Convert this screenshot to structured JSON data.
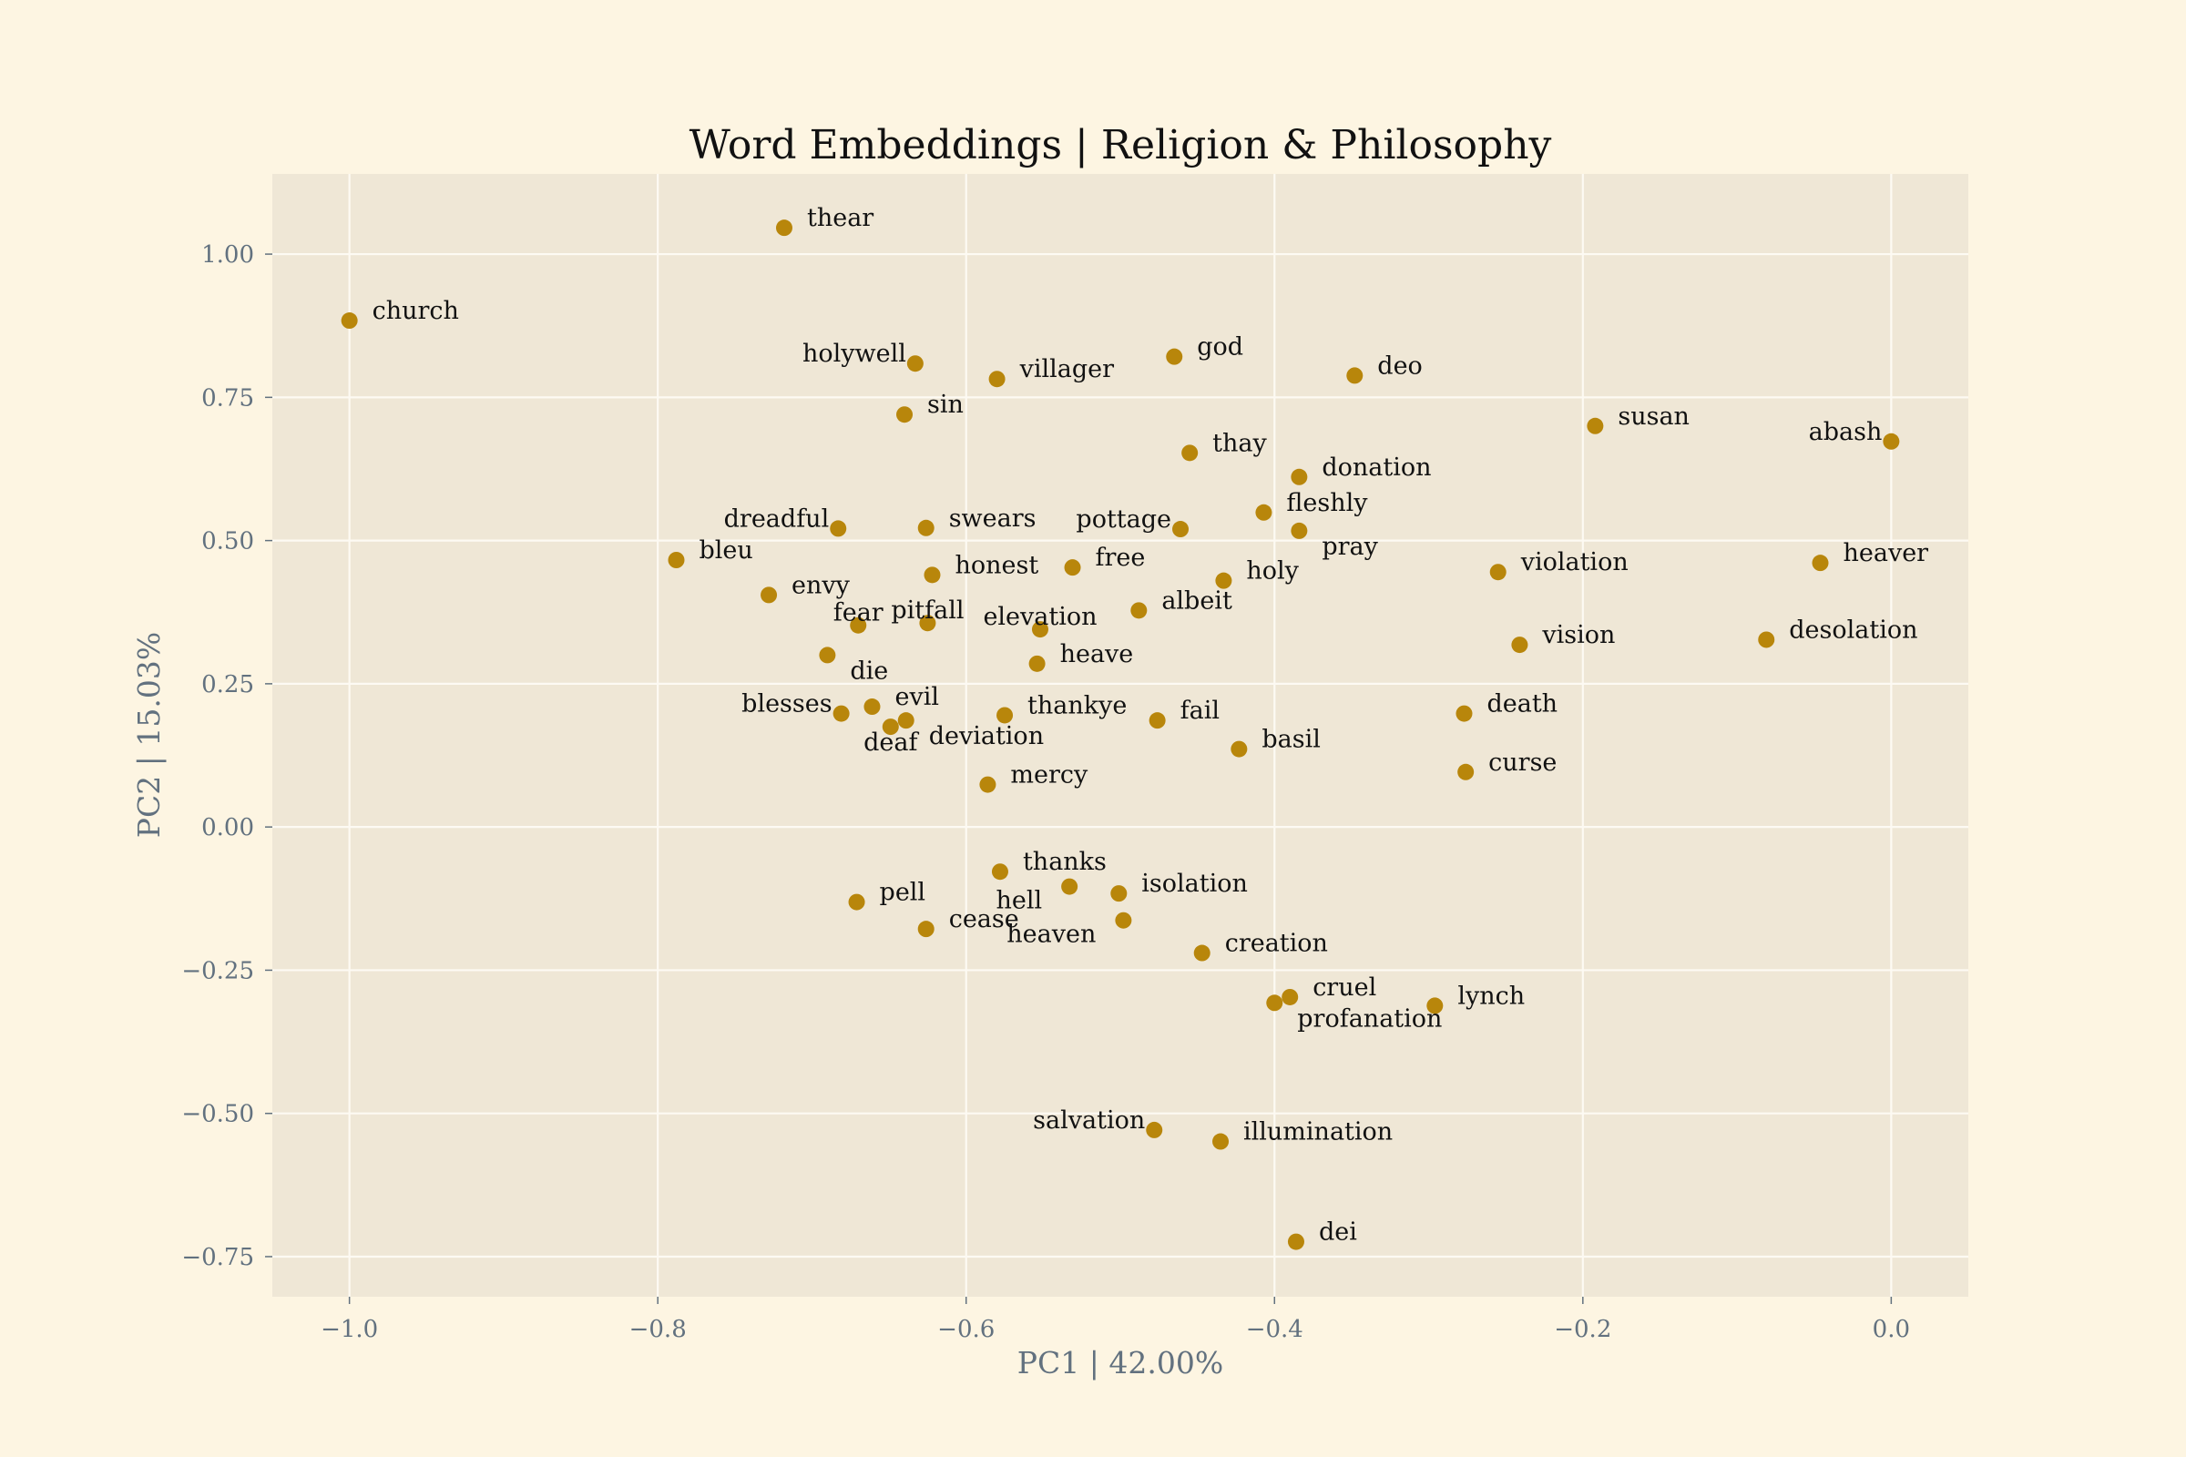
{
  "colors": {
    "figure_background": "#fdf5e2",
    "plot_background": "#efe7d6",
    "grid": "#fdfaf3",
    "point": "#b8860b",
    "tick_text": "#62717f",
    "label_text": "#111111"
  },
  "chart_data": {
    "type": "scatter",
    "title": "Word Embeddings | Religion & Philosophy",
    "xlabel": "PC1 | 42.00%",
    "ylabel": "PC2 | 15.03%",
    "xlim": [
      -1.05,
      0.05
    ],
    "ylim": [
      -0.82,
      1.14
    ],
    "grid": true,
    "legend": "none",
    "x_ticks": [
      -1.0,
      -0.8,
      -0.6,
      -0.4,
      -0.2,
      0.0
    ],
    "x_tick_labels": [
      "−1.0",
      "−0.8",
      "−0.6",
      "−0.4",
      "−0.2",
      "0.0"
    ],
    "y_ticks": [
      1.0,
      0.75,
      0.5,
      0.25,
      0.0,
      -0.25,
      -0.5,
      -0.75
    ],
    "y_tick_labels": [
      "1.00",
      "0.75",
      "0.50",
      "0.25",
      "0.00",
      "−0.25",
      "−0.50",
      "−0.75"
    ],
    "points": [
      {
        "label": "thear",
        "x": -0.718,
        "y": 1.046
      },
      {
        "label": "church",
        "x": -1.0,
        "y": 0.884
      },
      {
        "label": "holywell",
        "x": -0.633,
        "y": 0.809,
        "anchor": "left"
      },
      {
        "label": "villager",
        "x": -0.58,
        "y": 0.782
      },
      {
        "label": "god",
        "x": -0.465,
        "y": 0.821
      },
      {
        "label": "deo",
        "x": -0.348,
        "y": 0.788
      },
      {
        "label": "susan",
        "x": -0.192,
        "y": 0.7
      },
      {
        "label": "abash",
        "x": 0.0,
        "y": 0.673,
        "anchor": "left"
      },
      {
        "label": "sin",
        "x": -0.64,
        "y": 0.72
      },
      {
        "label": "thay",
        "x": -0.455,
        "y": 0.653
      },
      {
        "label": "donation",
        "x": -0.384,
        "y": 0.611
      },
      {
        "label": "fleshly",
        "x": -0.407,
        "y": 0.549
      },
      {
        "label": "pottage",
        "x": -0.461,
        "y": 0.52,
        "anchor": "left"
      },
      {
        "label": "pray",
        "x": -0.384,
        "y": 0.517,
        "below": true
      },
      {
        "label": "dreadful",
        "x": -0.683,
        "y": 0.521,
        "anchor": "left"
      },
      {
        "label": "swears",
        "x": -0.626,
        "y": 0.522
      },
      {
        "label": "bleu",
        "x": -0.788,
        "y": 0.466
      },
      {
        "label": "free",
        "x": -0.531,
        "y": 0.453
      },
      {
        "label": "honest",
        "x": -0.622,
        "y": 0.44
      },
      {
        "label": "holy",
        "x": -0.433,
        "y": 0.43
      },
      {
        "label": "violation",
        "x": -0.255,
        "y": 0.445
      },
      {
        "label": "heaver",
        "x": -0.046,
        "y": 0.461
      },
      {
        "label": "envy",
        "x": -0.728,
        "y": 0.405
      },
      {
        "label": "albeit",
        "x": -0.488,
        "y": 0.378
      },
      {
        "label": "fear",
        "x": -0.67,
        "y": 0.352,
        "anchor": "middle"
      },
      {
        "label": "pitfall",
        "x": -0.625,
        "y": 0.356,
        "anchor": "middle"
      },
      {
        "label": "elevation",
        "x": -0.552,
        "y": 0.345,
        "anchor": "middle"
      },
      {
        "label": "desolation",
        "x": -0.081,
        "y": 0.327
      },
      {
        "label": "vision",
        "x": -0.241,
        "y": 0.318
      },
      {
        "label": "die",
        "x": -0.69,
        "y": 0.3,
        "below": true
      },
      {
        "label": "heave",
        "x": -0.554,
        "y": 0.285
      },
      {
        "label": "blesses",
        "x": -0.681,
        "y": 0.198,
        "anchor": "left"
      },
      {
        "label": "evil",
        "x": -0.661,
        "y": 0.21
      },
      {
        "label": "deaf",
        "x": -0.649,
        "y": 0.175,
        "anchor": "middle",
        "below": true
      },
      {
        "label": "deviation",
        "x": -0.639,
        "y": 0.186,
        "below": true
      },
      {
        "label": "thankye",
        "x": -0.575,
        "y": 0.195
      },
      {
        "label": "fail",
        "x": -0.476,
        "y": 0.186
      },
      {
        "label": "death",
        "x": -0.277,
        "y": 0.198
      },
      {
        "label": "basil",
        "x": -0.423,
        "y": 0.136
      },
      {
        "label": "curse",
        "x": -0.276,
        "y": 0.096
      },
      {
        "label": "mercy",
        "x": -0.586,
        "y": 0.074
      },
      {
        "label": "thanks",
        "x": -0.578,
        "y": -0.078
      },
      {
        "label": "hell",
        "x": -0.533,
        "y": -0.104,
        "anchor": "right-below"
      },
      {
        "label": "isolation",
        "x": -0.501,
        "y": -0.116
      },
      {
        "label": "pell",
        "x": -0.671,
        "y": -0.131
      },
      {
        "label": "cease",
        "x": -0.626,
        "y": -0.178
      },
      {
        "label": "heaven",
        "x": -0.498,
        "y": -0.163,
        "anchor": "right-below"
      },
      {
        "label": "creation",
        "x": -0.447,
        "y": -0.22
      },
      {
        "label": "cruel",
        "x": -0.39,
        "y": -0.297
      },
      {
        "label": "profanation",
        "x": -0.4,
        "y": -0.307,
        "below": true
      },
      {
        "label": "lynch",
        "x": -0.296,
        "y": -0.312
      },
      {
        "label": "salvation",
        "x": -0.478,
        "y": -0.529,
        "anchor": "left"
      },
      {
        "label": "illumination",
        "x": -0.435,
        "y": -0.549
      },
      {
        "label": "dei",
        "x": -0.386,
        "y": -0.724
      }
    ]
  }
}
